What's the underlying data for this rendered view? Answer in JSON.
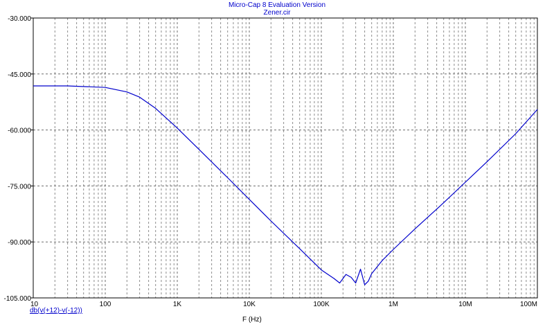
{
  "chart_data": {
    "type": "line",
    "title": "Micro-Cap 8 Evaluation Version",
    "subtitle": "Zener.cir",
    "xlabel": "F (Hz)",
    "xscale": "log",
    "xlim": [
      10,
      100000000
    ],
    "ylim": [
      -105,
      -30
    ],
    "grid": true,
    "x_tick_labels": [
      "10",
      "100",
      "1K",
      "10K",
      "100K",
      "1M",
      "10M",
      "100M"
    ],
    "y_tick_labels": [
      "-30.000",
      "-45.000",
      "-60.000",
      "-75.000",
      "-90.000",
      "-105.000"
    ],
    "series": [
      {
        "name": "db(v(+12)-v(-12))",
        "color": "#0000cc",
        "x": [
          10,
          30,
          100,
          200,
          300,
          500,
          1000,
          2000,
          5000,
          10000,
          20000,
          50000,
          100000,
          150000,
          180000,
          220000,
          260000,
          300000,
          350000,
          400000,
          450000,
          500000,
          700000,
          1000000,
          2000000,
          5000000,
          10000000,
          20000000,
          50000000,
          100000000
        ],
        "y": [
          -48.2,
          -48.2,
          -48.6,
          -49.8,
          -51.2,
          -54.2,
          -59.5,
          -65.2,
          -72.8,
          -78.6,
          -84.4,
          -91.8,
          -97.5,
          -99.8,
          -101.0,
          -98.7,
          -99.5,
          -101.0,
          -97.3,
          -101.5,
          -100.5,
          -98.5,
          -95.0,
          -92.0,
          -86.5,
          -79.5,
          -74.0,
          -68.5,
          -61.0,
          -54.5
        ]
      }
    ]
  }
}
